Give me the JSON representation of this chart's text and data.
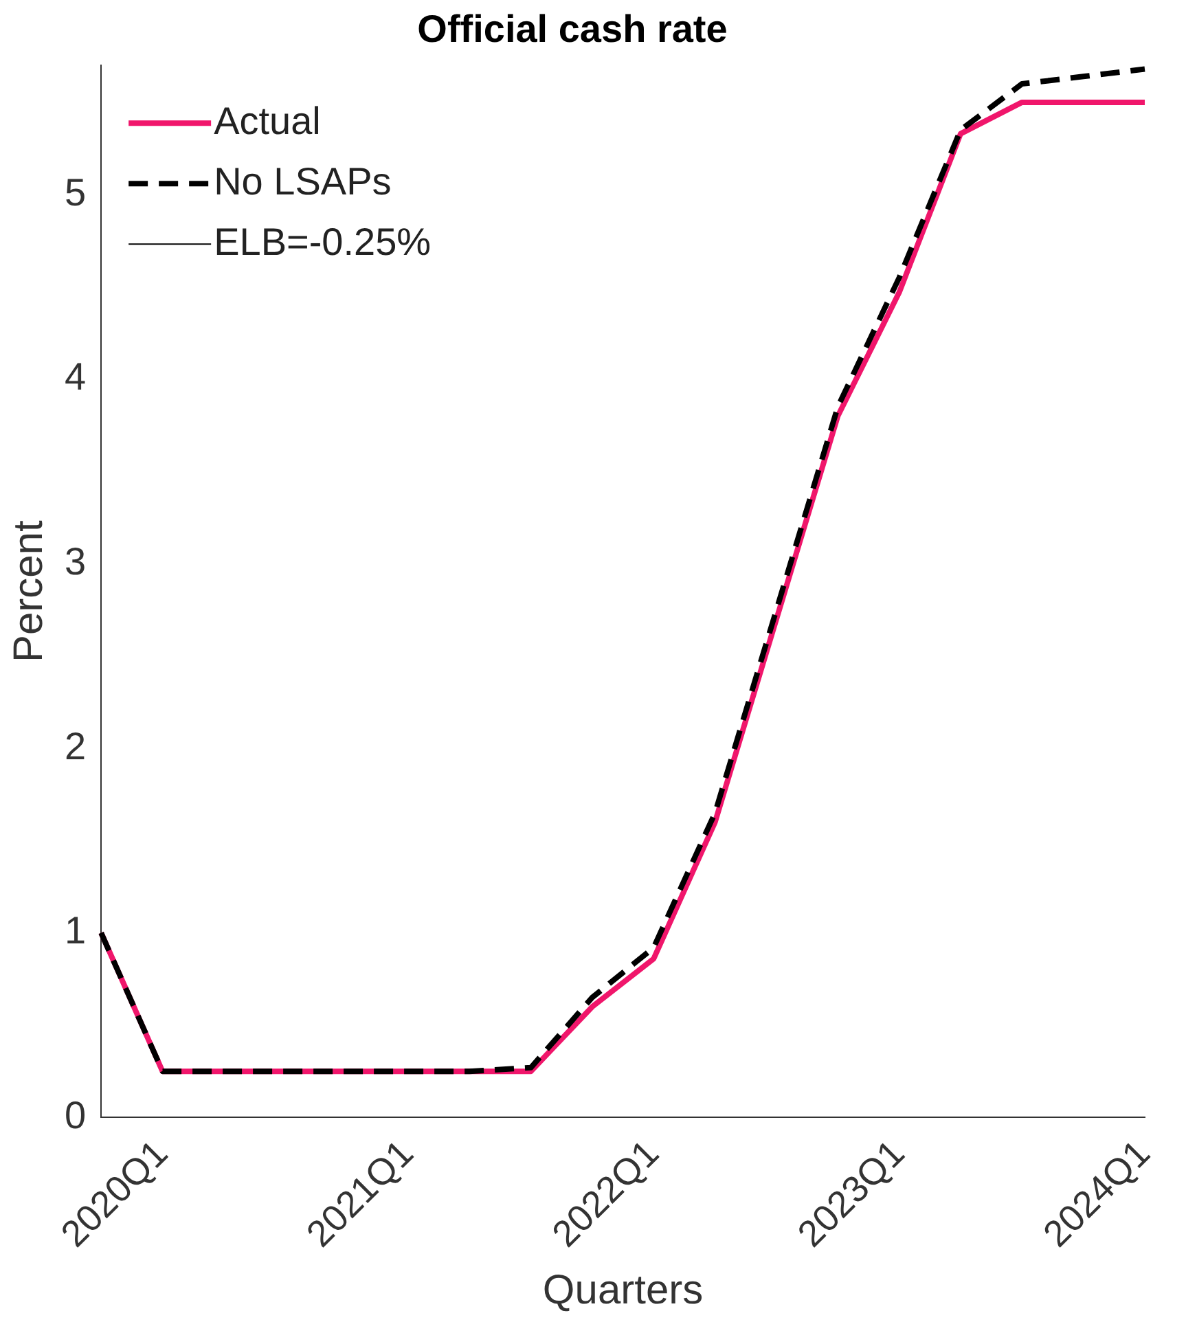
{
  "chart_data": {
    "type": "line",
    "title": "Official cash rate",
    "xlabel": "Quarters",
    "ylabel": "Percent",
    "categories": [
      null,
      "2020Q1",
      null,
      null,
      null,
      "2021Q1",
      null,
      null,
      null,
      "2022Q1",
      null,
      null,
      null,
      "2023Q1",
      null,
      null,
      null,
      "2024Q1"
    ],
    "series": [
      {
        "name": "Actual",
        "color": "#f0166b",
        "line_style": "solid",
        "values": [
          1.0,
          0.25,
          0.25,
          0.25,
          0.25,
          0.25,
          0.25,
          0.25,
          0.6,
          0.86,
          1.6,
          2.7,
          3.8,
          4.47,
          5.33,
          5.5,
          5.5,
          5.5
        ]
      },
      {
        "name": "No LSAPs",
        "color": "#000000",
        "line_style": "dashed",
        "values": [
          1.0,
          0.25,
          0.25,
          0.25,
          0.25,
          0.25,
          0.25,
          0.27,
          0.65,
          0.92,
          1.65,
          2.75,
          3.85,
          4.55,
          5.35,
          5.6,
          5.64,
          5.68
        ]
      },
      {
        "name": "ELB=-0.25%",
        "color": "#000000",
        "line_style": "solid",
        "values": [
          null,
          null,
          null,
          null,
          null,
          null,
          null,
          null,
          null,
          null,
          null,
          null,
          null,
          null,
          null,
          null,
          null,
          null
        ]
      }
    ],
    "ylim": [
      0,
      5.7
    ],
    "yticks": [
      0,
      1,
      2,
      3,
      4,
      5
    ],
    "grid": false,
    "legend": "top left",
    "marker": "none"
  }
}
